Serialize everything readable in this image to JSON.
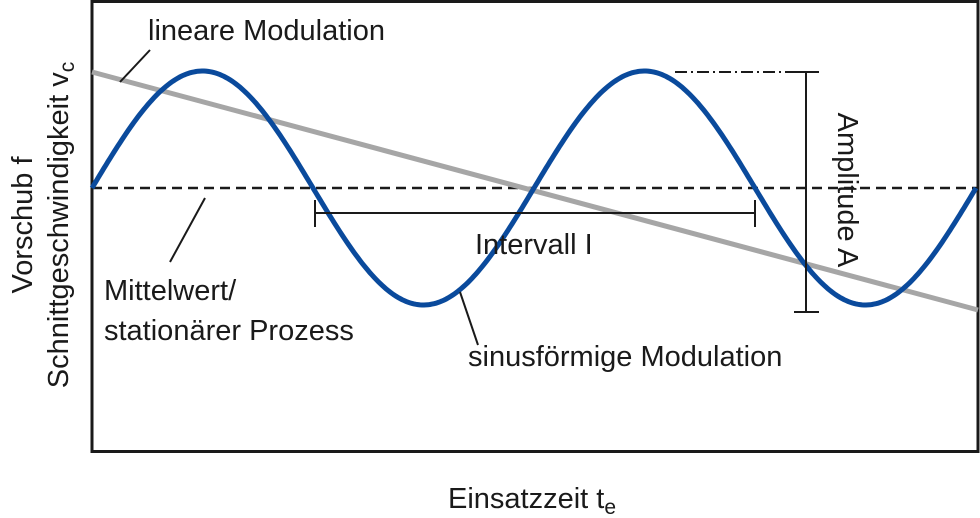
{
  "y_axis": {
    "line1": "Vorschub f",
    "line2": {
      "text": "Schnittgeschwindigkeit v",
      "subscript": "c"
    }
  },
  "x_axis": {
    "text": "Einsatzzeit t",
    "subscript": "e"
  },
  "labels": {
    "linear": "lineare Modulation",
    "mean": [
      "Mittelwert/",
      "stationärer Prozess"
    ],
    "interval": "Intervall I",
    "amplitude": "Amplitude A",
    "sine": "sinusförmige Modulation"
  }
}
